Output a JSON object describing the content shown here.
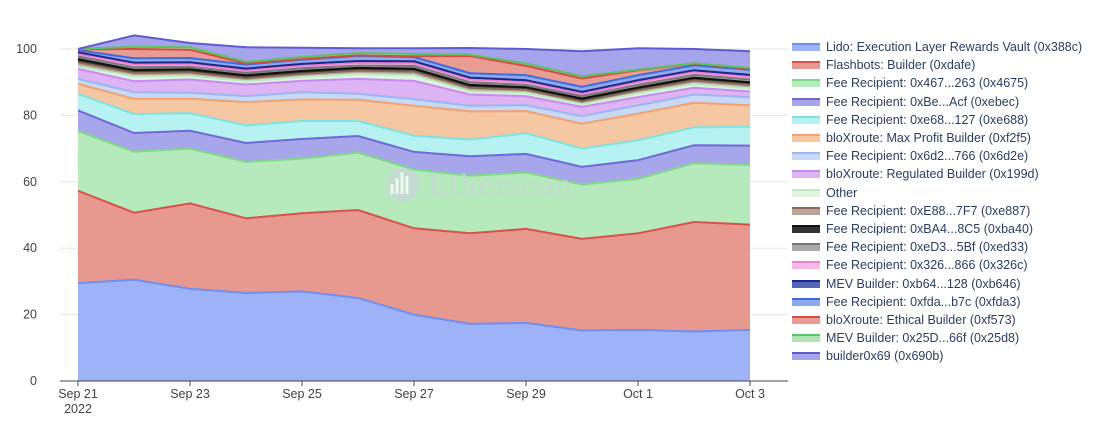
{
  "chart_data": {
    "type": "area",
    "stacked": true,
    "stack_mode": "percent",
    "title": "",
    "xlabel": "",
    "ylabel": "",
    "ylim": [
      0,
      100
    ],
    "x": [
      "2022-09-21",
      "2022-09-22",
      "2022-09-23",
      "2022-09-24",
      "2022-09-25",
      "2022-09-26",
      "2022-09-27",
      "2022-09-28",
      "2022-09-29",
      "2022-09-30",
      "2022-10-01",
      "2022-10-02",
      "2022-10-03"
    ],
    "x_ticks": [
      {
        "date": "2022-09-21",
        "label": "Sep 21",
        "sublabel": "2022"
      },
      {
        "date": "2022-09-23",
        "label": "Sep 23",
        "sublabel": ""
      },
      {
        "date": "2022-09-25",
        "label": "Sep 25",
        "sublabel": ""
      },
      {
        "date": "2022-09-27",
        "label": "Sep 27",
        "sublabel": ""
      },
      {
        "date": "2022-09-29",
        "label": "Sep 29",
        "sublabel": ""
      },
      {
        "date": "2022-10-01",
        "label": "Oct 1",
        "sublabel": ""
      },
      {
        "date": "2022-10-03",
        "label": "Oct 3",
        "sublabel": ""
      }
    ],
    "y_ticks": [
      0,
      20,
      40,
      60,
      80,
      100
    ],
    "grid": true,
    "legend_position": "right",
    "series": [
      {
        "name": "Lido: Execution Layer Rewards Vault (0x388c)",
        "color": "#6f8ff5",
        "fill": "#9db2f7",
        "values": [
          29.5,
          30.5,
          27.8,
          26.5,
          27.0,
          25.0,
          20.0,
          17.2,
          17.5,
          15.2,
          15.4,
          14.9,
          15.4
        ]
      },
      {
        "name": "Flashbots: Builder (0xdafe)",
        "color": "#d9514a",
        "fill": "#e8998f",
        "values": [
          27.8,
          20.2,
          25.7,
          22.5,
          23.5,
          26.5,
          26.0,
          27.3,
          28.3,
          27.6,
          29.1,
          33.0,
          31.7
        ]
      },
      {
        "name": "Fee Recipient: 0x467...263 (0x4675)",
        "color": "#7ed987",
        "fill": "#b6e9bb",
        "values": [
          18.0,
          18.4,
          16.5,
          17.0,
          16.5,
          17.3,
          17.7,
          17.3,
          17.0,
          16.4,
          16.4,
          17.7,
          18.0
        ]
      },
      {
        "name": "Fee Recipient: 0xBe...Acf (0xebec)",
        "color": "#6f68d6",
        "fill": "#a8a6ea",
        "values": [
          6.2,
          5.6,
          5.4,
          5.7,
          5.9,
          5.0,
          5.3,
          5.9,
          5.6,
          5.3,
          5.6,
          5.4,
          5.8
        ]
      },
      {
        "name": "Fee Recipient: 0xe68...127 (0xe688)",
        "color": "#7de3e3",
        "fill": "#b7f2f2",
        "values": [
          5.0,
          5.7,
          5.3,
          5.3,
          5.4,
          4.5,
          4.9,
          5.0,
          6.2,
          5.5,
          6.0,
          5.4,
          5.7
        ]
      },
      {
        "name": "bloXroute: Max Profit Builder (0xf2f5)",
        "color": "#f4a16b",
        "fill": "#f6c7a3",
        "values": [
          3.0,
          4.6,
          4.3,
          7.0,
          6.5,
          6.4,
          9.0,
          8.5,
          6.7,
          7.5,
          8.0,
          7.4,
          6.4
        ]
      },
      {
        "name": "Fee Recipient: 0x6d2...766 (0x6d2e)",
        "color": "#9bb6f0",
        "fill": "#c8d8f7",
        "values": [
          1.5,
          2.0,
          1.8,
          1.8,
          2.2,
          1.8,
          2.0,
          1.7,
          1.8,
          2.3,
          2.5,
          2.5,
          2.5
        ]
      },
      {
        "name": "bloXroute: Regulated Builder (0x199d)",
        "color": "#c889f0",
        "fill": "#ddb5f5",
        "values": [
          3.0,
          3.3,
          4.0,
          3.5,
          3.4,
          4.5,
          5.5,
          3.4,
          2.7,
          2.8,
          2.5,
          2.0,
          1.7
        ]
      },
      {
        "name": "Other",
        "color": "#bde9c2",
        "fill": "#dff5e2",
        "values": [
          0.8,
          1.5,
          1.2,
          1.0,
          1.2,
          1.5,
          1.7,
          1.0,
          1.0,
          0.8,
          1.2,
          1.2,
          1.0
        ]
      },
      {
        "name": "Fee Recipient: 0xE88...7F7 (0xe887)",
        "color": "#8a6a55",
        "fill": "#b8a49a",
        "values": [
          1.2,
          1.0,
          1.0,
          0.9,
          0.9,
          1.0,
          1.1,
          1.0,
          0.9,
          0.8,
          0.9,
          1.0,
          1.0
        ]
      },
      {
        "name": "Fee Recipient: 0xBA4...8C5 (0xba40)",
        "color": "#111111",
        "fill": "#333333",
        "values": [
          1.0,
          0.9,
          0.9,
          0.9,
          0.9,
          0.8,
          0.9,
          0.9,
          0.8,
          0.9,
          0.8,
          0.9,
          0.8
        ]
      },
      {
        "name": "Fee Recipient: 0xeD3...5Bf (0xed33)",
        "color": "#777777",
        "fill": "#aaaaaa",
        "values": [
          0.8,
          0.8,
          0.7,
          0.7,
          0.8,
          0.7,
          0.8,
          0.8,
          0.7,
          0.7,
          0.8,
          0.8,
          0.8
        ]
      },
      {
        "name": "Fee Recipient: 0x326...866 (0x326c)",
        "color": "#ee7fd2",
        "fill": "#f6b8e6",
        "values": [
          0.7,
          0.8,
          0.8,
          0.7,
          0.7,
          0.8,
          0.8,
          0.8,
          0.8,
          0.7,
          0.8,
          0.8,
          0.8
        ]
      },
      {
        "name": "MEV Builder: 0xb64...128 (0xb646)",
        "color": "#1b2a8a",
        "fill": "#5565b8",
        "values": [
          0.5,
          0.6,
          0.6,
          0.6,
          0.6,
          0.6,
          0.6,
          0.6,
          0.6,
          0.6,
          0.6,
          0.6,
          0.6
        ]
      },
      {
        "name": "Fee Recipient: 0xfda...b7c (0xfda3)",
        "color": "#3b6de0",
        "fill": "#8fa9ee",
        "values": [
          0.6,
          1.3,
          1.3,
          1.2,
          1.3,
          1.5,
          1.3,
          1.3,
          1.5,
          1.5,
          1.5,
          1.5,
          1.5
        ]
      },
      {
        "name": "bloXroute: Ethical Builder (0xf573)",
        "color": "#d94a3f",
        "fill": "#ea9b93",
        "values": [
          0.3,
          2.8,
          2.5,
          0.3,
          0.2,
          0.2,
          0.2,
          5.2,
          2.8,
          2.5,
          1.5,
          0.5,
          0.3
        ]
      },
      {
        "name": "MEV Builder: 0x25D...66f (0x25d8)",
        "color": "#58c462",
        "fill": "#aee4b3",
        "values": [
          0.1,
          0.7,
          0.7,
          0.5,
          0.6,
          0.7,
          0.7,
          0.4,
          0.7,
          0.7,
          0.2,
          0.1,
          0.3
        ]
      },
      {
        "name": "builder0x69 (0x690b)",
        "color": "#5e5bd0",
        "fill": "#a6a4ea",
        "values": [
          0.0,
          3.4,
          1.3,
          4.4,
          2.8,
          1.4,
          1.7,
          2.0,
          4.4,
          7.5,
          6.4,
          4.3,
          5.0
        ]
      }
    ]
  },
  "watermark": {
    "text": "Etherscan",
    "icon": "etherscan-logo-icon"
  }
}
